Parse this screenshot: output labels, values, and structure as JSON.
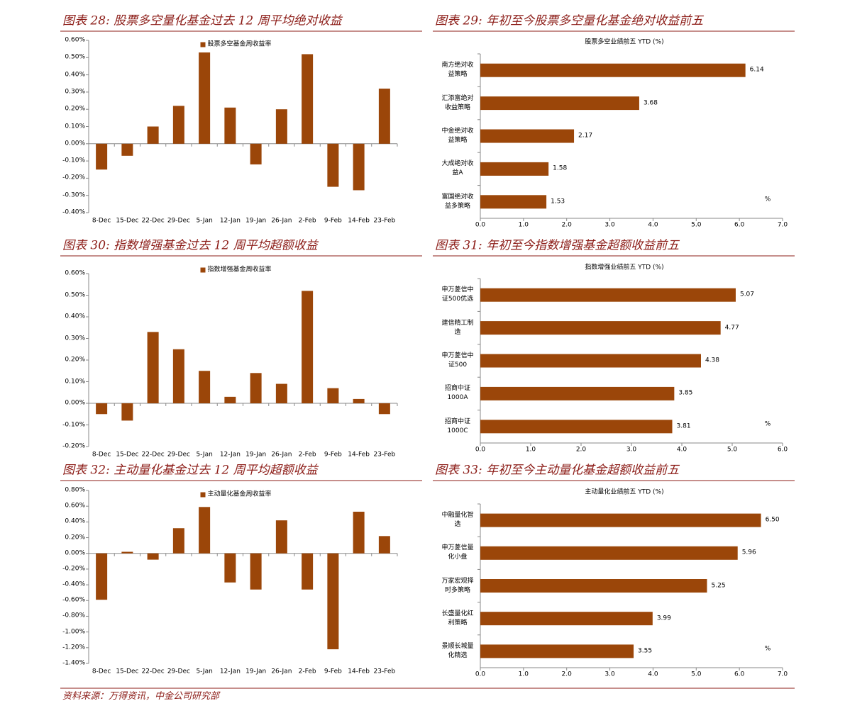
{
  "chart_data": [
    {
      "type": "bar",
      "caption": "图表 28: 股票多空量化基金过去 12 周平均绝对收益",
      "categories": [
        "8-Dec",
        "15-Dec",
        "22-Dec",
        "29-Dec",
        "5-Jan",
        "12-Jan",
        "19-Jan",
        "26-Jan",
        "2-Feb",
        "9-Feb",
        "14-Feb",
        "23-Feb"
      ],
      "series": [
        {
          "name": "股票多空基金周收益率",
          "color": "#9b4609",
          "values": [
            -0.15,
            -0.07,
            0.1,
            0.22,
            0.53,
            0.21,
            -0.12,
            0.2,
            0.52,
            -0.25,
            -0.27,
            0.32
          ]
        }
      ],
      "ylim": [
        -0.4,
        0.6
      ],
      "yticks": [
        {
          "value": -0.4,
          "label": "-0.40%"
        },
        {
          "value": -0.3,
          "label": "-0.30%"
        },
        {
          "value": -0.2,
          "label": "-0.20%"
        },
        {
          "value": -0.1,
          "label": "-0.10%"
        },
        {
          "value": 0,
          "label": "0.00%"
        },
        {
          "value": 0.1,
          "label": "0.10%"
        },
        {
          "value": 0.2,
          "label": "0.20%"
        },
        {
          "value": 0.3,
          "label": "0.30%"
        },
        {
          "value": 0.4,
          "label": "0.40%"
        },
        {
          "value": 0.5,
          "label": "0.50%"
        },
        {
          "value": 0.6,
          "label": "0.60%"
        }
      ]
    },
    {
      "type": "hbar",
      "caption": "图表 29: 年初至今股票多空量化基金绝对收益前五",
      "title": "股票多空业绩前五 YTD (%)",
      "categories": [
        "南方绝对收\n益策略",
        "汇添富绝对\n收益策略",
        "中金绝对收\n益策略",
        "大成绝对收\n益A",
        "富国绝对收\n益多策略"
      ],
      "values": [
        6.14,
        3.68,
        2.17,
        1.58,
        1.53
      ],
      "color": "#9b4609",
      "annotation": "%",
      "xlim": [
        0,
        7
      ],
      "xticks": [
        {
          "value": 0,
          "label": "0.0"
        },
        {
          "value": 1,
          "label": "1.0"
        },
        {
          "value": 2,
          "label": "2.0"
        },
        {
          "value": 3,
          "label": "3.0"
        },
        {
          "value": 4,
          "label": "4.0"
        },
        {
          "value": 5,
          "label": "5.0"
        },
        {
          "value": 6,
          "label": "6.0"
        },
        {
          "value": 7,
          "label": "7.0"
        }
      ]
    },
    {
      "type": "bar",
      "caption": "图表 30: 指数增强基金过去 12 周平均超额收益",
      "categories": [
        "8-Dec",
        "15-Dec",
        "22-Dec",
        "29-Dec",
        "5-Jan",
        "12-Jan",
        "19-Jan",
        "26-Jan",
        "2-Feb",
        "9-Feb",
        "14-Feb",
        "23-Feb"
      ],
      "series": [
        {
          "name": "指数增强基金周收益率",
          "color": "#9b4609",
          "values": [
            -0.05,
            -0.08,
            0.33,
            0.25,
            0.15,
            0.03,
            0.14,
            0.09,
            0.52,
            0.07,
            0.02,
            -0.05
          ]
        }
      ],
      "ylim": [
        -0.2,
        0.6
      ],
      "yticks": [
        {
          "value": -0.2,
          "label": "-0.20%"
        },
        {
          "value": -0.1,
          "label": "-0.10%"
        },
        {
          "value": 0,
          "label": "0.00%"
        },
        {
          "value": 0.1,
          "label": "0.10%"
        },
        {
          "value": 0.2,
          "label": "0.20%"
        },
        {
          "value": 0.3,
          "label": "0.30%"
        },
        {
          "value": 0.4,
          "label": "0.40%"
        },
        {
          "value": 0.5,
          "label": "0.50%"
        },
        {
          "value": 0.6,
          "label": "0.60%"
        }
      ]
    },
    {
      "type": "hbar",
      "caption": "图表 31: 年初至今指数增强基金超额收益前五",
      "title": "指数增强业绩前五 YTD (%)",
      "categories": [
        "申万菱信中\n证500优选",
        "建信精工制\n造",
        "申万菱信中\n证500",
        "招商中证\n1000A",
        "招商中证\n1000C"
      ],
      "values": [
        5.07,
        4.77,
        4.38,
        3.85,
        3.81
      ],
      "color": "#9b4609",
      "annotation": "%",
      "xlim": [
        0,
        6
      ],
      "xticks": [
        {
          "value": 0,
          "label": "0.0"
        },
        {
          "value": 1,
          "label": "1.0"
        },
        {
          "value": 2,
          "label": "2.0"
        },
        {
          "value": 3,
          "label": "3.0"
        },
        {
          "value": 4,
          "label": "4.0"
        },
        {
          "value": 5,
          "label": "5.0"
        },
        {
          "value": 6,
          "label": "6.0"
        }
      ]
    },
    {
      "type": "bar",
      "caption": "图表 32: 主动量化基金过去 12 周平均超额收益",
      "categories": [
        "8-Dec",
        "15-Dec",
        "22-Dec",
        "29-Dec",
        "5-Jan",
        "12-Jan",
        "19-Jan",
        "26-Jan",
        "2-Feb",
        "9-Feb",
        "14-Feb",
        "23-Feb"
      ],
      "series": [
        {
          "name": "主动量化基金周收益率",
          "color": "#9b4609",
          "values": [
            -0.59,
            0.02,
            -0.08,
            0.32,
            0.59,
            -0.37,
            -0.46,
            0.42,
            -0.46,
            -1.22,
            0.53,
            0.22
          ]
        }
      ],
      "ylim": [
        -1.4,
        0.8
      ],
      "yticks": [
        {
          "value": -1.4,
          "label": "-1.40%"
        },
        {
          "value": -1.2,
          "label": "-1.20%"
        },
        {
          "value": -1.0,
          "label": "-1.00%"
        },
        {
          "value": -0.8,
          "label": "-0.80%"
        },
        {
          "value": -0.6,
          "label": "-0.60%"
        },
        {
          "value": -0.4,
          "label": "-0.40%"
        },
        {
          "value": -0.2,
          "label": "-0.20%"
        },
        {
          "value": 0,
          "label": "0.00%"
        },
        {
          "value": 0.2,
          "label": "0.20%"
        },
        {
          "value": 0.4,
          "label": "0.40%"
        },
        {
          "value": 0.6,
          "label": "0.60%"
        },
        {
          "value": 0.8,
          "label": "0.80%"
        }
      ]
    },
    {
      "type": "hbar",
      "caption": "图表 33: 年初至今主动量化基金超额收益前五",
      "title": "主动量化业绩前五 YTD (%)",
      "categories": [
        "中融量化智\n选",
        "申万菱信量\n化小盘",
        "万家宏观择\n时多策略",
        "长盛量化红\n利策略",
        "景顺长城量\n化精选"
      ],
      "values": [
        6.5,
        5.96,
        5.25,
        3.99,
        3.55
      ],
      "value_labels": [
        "6.50",
        "5.96",
        "5.25",
        "3.99",
        "3.55"
      ],
      "color": "#9b4609",
      "annotation": "%",
      "xlim": [
        0,
        7
      ],
      "xticks": [
        {
          "value": 0,
          "label": "0.0"
        },
        {
          "value": 1,
          "label": "1.0"
        },
        {
          "value": 2,
          "label": "2.0"
        },
        {
          "value": 3,
          "label": "3.0"
        },
        {
          "value": 4,
          "label": "4.0"
        },
        {
          "value": 5,
          "label": "5.0"
        },
        {
          "value": 6,
          "label": "6.0"
        },
        {
          "value": 7,
          "label": "7.0"
        }
      ]
    }
  ],
  "source": "资料来源：万得资讯，中金公司研究部"
}
